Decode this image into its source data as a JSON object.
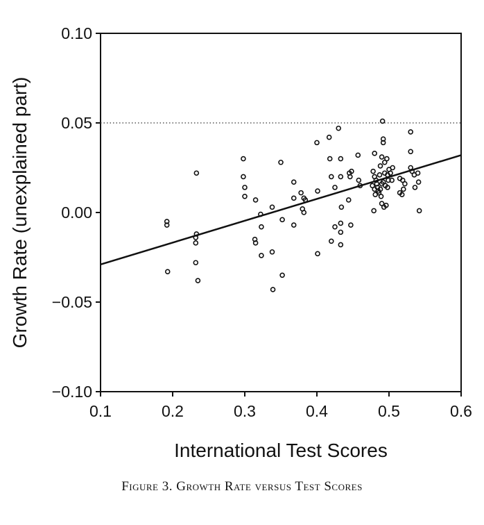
{
  "caption": "Figure 3. Growth Rate versus Test Scores",
  "chart_data": {
    "type": "scatter",
    "title": "",
    "xlabel": "International Test Scores",
    "ylabel": "Growth Rate (unexplained part)",
    "xlim": [
      0.1,
      0.6
    ],
    "ylim": [
      -0.1,
      0.1
    ],
    "xticks": [
      0.1,
      0.2,
      0.3,
      0.4,
      0.5,
      0.6
    ],
    "xtick_labels": [
      "0.1",
      "0.2",
      "0.3",
      "0.4",
      "0.5",
      "0.6"
    ],
    "yticks": [
      0.1,
      0.05,
      0.0,
      -0.05,
      -0.1
    ],
    "ytick_labels": [
      "0.10",
      "0.05",
      "0.00",
      "−0.05",
      "−0.10"
    ],
    "reference_line_y": 0.05,
    "grid": false,
    "fit_line": {
      "x": [
        0.1,
        0.6
      ],
      "y": [
        -0.029,
        0.032
      ]
    },
    "points": [
      [
        0.192,
        -0.005
      ],
      [
        0.192,
        -0.007
      ],
      [
        0.193,
        -0.033
      ],
      [
        0.233,
        0.022
      ],
      [
        0.233,
        -0.012
      ],
      [
        0.232,
        -0.014
      ],
      [
        0.232,
        -0.017
      ],
      [
        0.232,
        -0.028
      ],
      [
        0.235,
        -0.038
      ],
      [
        0.298,
        0.03
      ],
      [
        0.298,
        0.02
      ],
      [
        0.3,
        0.014
      ],
      [
        0.3,
        0.009
      ],
      [
        0.315,
        0.007
      ],
      [
        0.314,
        -0.015
      ],
      [
        0.315,
        -0.017
      ],
      [
        0.322,
        -0.001
      ],
      [
        0.323,
        -0.008
      ],
      [
        0.323,
        -0.024
      ],
      [
        0.338,
        0.003
      ],
      [
        0.338,
        -0.022
      ],
      [
        0.339,
        -0.043
      ],
      [
        0.35,
        0.028
      ],
      [
        0.352,
        -0.004
      ],
      [
        0.352,
        -0.035
      ],
      [
        0.368,
        0.017
      ],
      [
        0.368,
        0.008
      ],
      [
        0.368,
        -0.007
      ],
      [
        0.378,
        0.011
      ],
      [
        0.38,
        0.002
      ],
      [
        0.382,
        0.008
      ],
      [
        0.384,
        0.007
      ],
      [
        0.382,
        0.0
      ],
      [
        0.4,
        0.039
      ],
      [
        0.401,
        0.012
      ],
      [
        0.401,
        -0.023
      ],
      [
        0.417,
        0.042
      ],
      [
        0.418,
        0.03
      ],
      [
        0.42,
        0.02
      ],
      [
        0.42,
        -0.016
      ],
      [
        0.425,
        0.014
      ],
      [
        0.425,
        -0.008
      ],
      [
        0.43,
        0.047
      ],
      [
        0.433,
        0.03
      ],
      [
        0.433,
        0.02
      ],
      [
        0.434,
        0.003
      ],
      [
        0.433,
        -0.006
      ],
      [
        0.433,
        -0.018
      ],
      [
        0.433,
        -0.011
      ],
      [
        0.445,
        0.022
      ],
      [
        0.448,
        0.023
      ],
      [
        0.446,
        0.02
      ],
      [
        0.444,
        0.007
      ],
      [
        0.447,
        -0.007
      ],
      [
        0.457,
        0.032
      ],
      [
        0.458,
        0.018
      ],
      [
        0.46,
        0.015
      ],
      [
        0.478,
        0.023
      ],
      [
        0.477,
        0.015
      ],
      [
        0.479,
        0.001
      ],
      [
        0.48,
        0.033
      ],
      [
        0.48,
        0.02
      ],
      [
        0.48,
        0.013
      ],
      [
        0.481,
        0.01
      ],
      [
        0.482,
        0.018
      ],
      [
        0.483,
        0.016
      ],
      [
        0.484,
        0.014
      ],
      [
        0.485,
        0.012
      ],
      [
        0.486,
        0.011
      ],
      [
        0.487,
        0.021
      ],
      [
        0.488,
        0.026
      ],
      [
        0.488,
        0.013
      ],
      [
        0.489,
        0.009
      ],
      [
        0.49,
        0.031
      ],
      [
        0.49,
        0.016
      ],
      [
        0.49,
        0.005
      ],
      [
        0.491,
        0.051
      ],
      [
        0.492,
        0.041
      ],
      [
        0.492,
        0.039
      ],
      [
        0.492,
        0.017
      ],
      [
        0.493,
        0.003
      ],
      [
        0.494,
        0.028
      ],
      [
        0.494,
        0.022
      ],
      [
        0.495,
        0.015
      ],
      [
        0.496,
        0.004
      ],
      [
        0.497,
        0.03
      ],
      [
        0.498,
        0.021
      ],
      [
        0.498,
        0.014
      ],
      [
        0.499,
        0.018
      ],
      [
        0.5,
        0.024
      ],
      [
        0.502,
        0.022
      ],
      [
        0.504,
        0.018
      ],
      [
        0.505,
        0.025
      ],
      [
        0.515,
        0.019
      ],
      [
        0.515,
        0.011
      ],
      [
        0.518,
        0.01
      ],
      [
        0.519,
        0.018
      ],
      [
        0.52,
        0.013
      ],
      [
        0.522,
        0.016
      ],
      [
        0.53,
        0.045
      ],
      [
        0.53,
        0.034
      ],
      [
        0.53,
        0.025
      ],
      [
        0.532,
        0.023
      ],
      [
        0.535,
        0.021
      ],
      [
        0.536,
        0.014
      ],
      [
        0.54,
        0.022
      ],
      [
        0.541,
        0.017
      ],
      [
        0.542,
        0.001
      ]
    ]
  }
}
